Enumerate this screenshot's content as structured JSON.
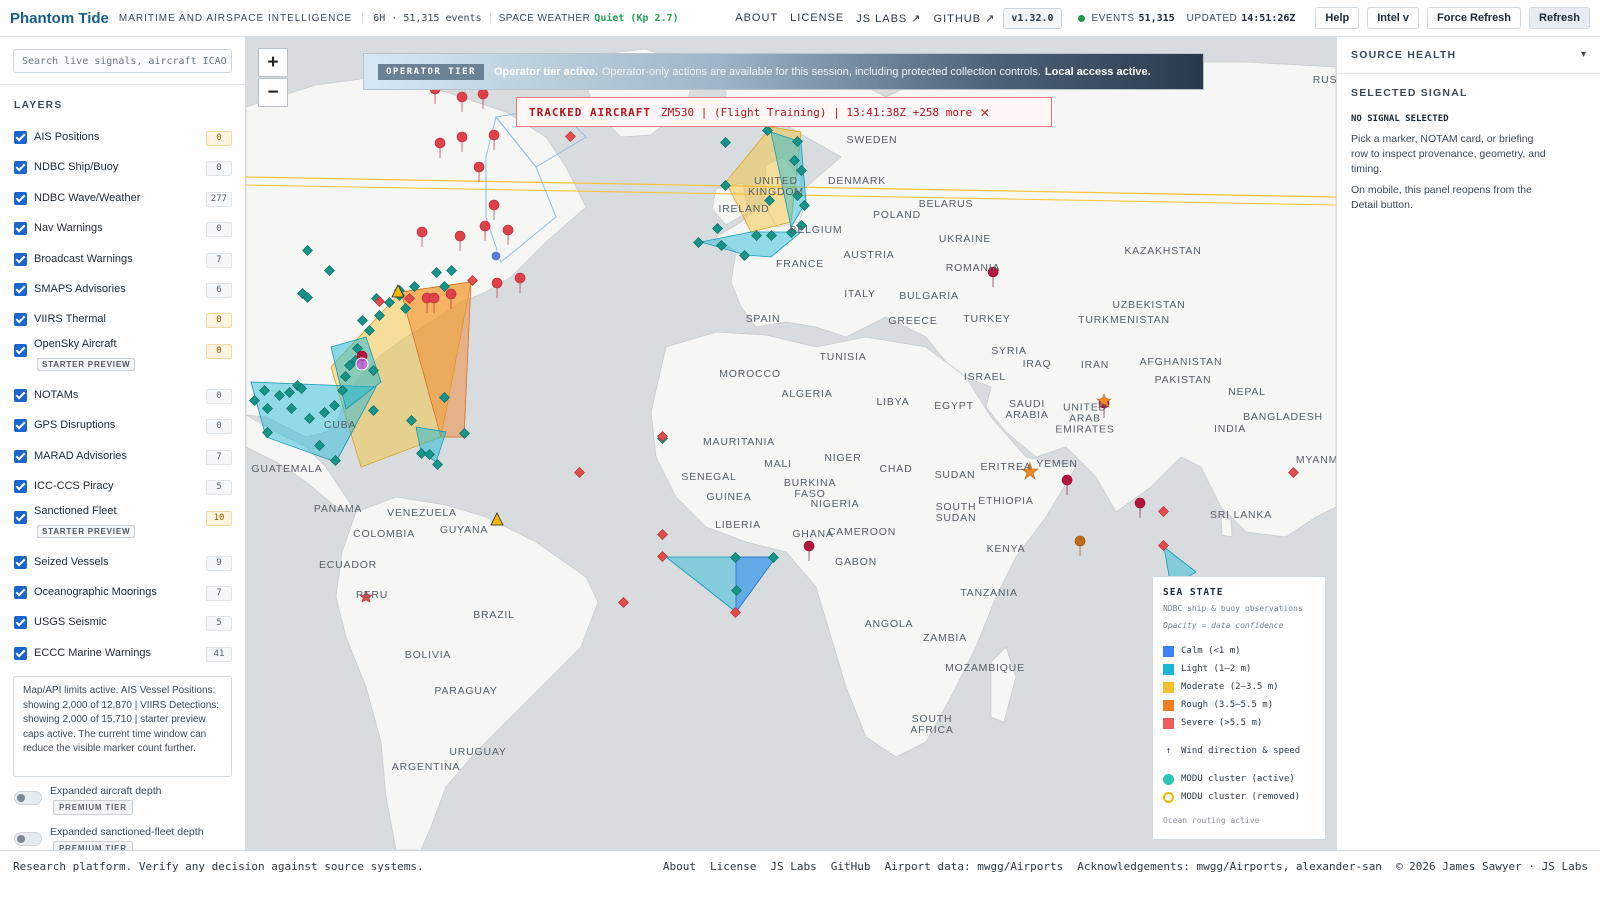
{
  "header": {
    "brand": "Phantom Tide",
    "tagline": "MARITIME AND AIRSPACE INTELLIGENCE",
    "window": "6H · 51,315 events",
    "space_weather_label": "SPACE WEATHER",
    "space_weather_value": "Quiet (Kp 2.7)",
    "nav": [
      "ABOUT",
      "LICENSE",
      "JS LABS ↗",
      "GITHUB ↗"
    ],
    "version": "v1.32.0",
    "events_label": "EVENTS",
    "events_value": "51,315",
    "updated_label": "UPDATED",
    "updated_value": "14:51:26Z",
    "buttons": {
      "help": "Help",
      "intel": "Intel v",
      "force_refresh": "Force Refresh",
      "refresh": "Refresh"
    },
    "status_color": "#1e9a50",
    "brand_color": "#155e86"
  },
  "left": {
    "search_placeholder": "Search live signals, aircraft ICAO",
    "layers_title": "LAYERS",
    "layers": [
      {
        "label": "AIS Positions",
        "count": "0",
        "warn": true
      },
      {
        "label": "NDBC Ship/Buoy",
        "count": "0"
      },
      {
        "label": "NDBC Wave/Weather",
        "count": "277"
      },
      {
        "label": "Nav Warnings",
        "count": "0"
      },
      {
        "label": "Broadcast Warnings",
        "count": "7"
      },
      {
        "label": "SMAPS Advisories",
        "count": "6"
      },
      {
        "label": "VIIRS Thermal",
        "count": "0",
        "warn": true
      },
      {
        "label": "OpenSky Aircraft",
        "count": "0",
        "warn": true,
        "tag": "STARTER PREVIEW"
      },
      {
        "label": "NOTAMs",
        "count": "0"
      },
      {
        "label": "GPS Disruptions",
        "count": "0"
      },
      {
        "label": "MARAD Advisories",
        "count": "7"
      },
      {
        "label": "ICC-CCS Piracy",
        "count": "5"
      },
      {
        "label": "Sanctioned Fleet",
        "count": "10",
        "warn": true,
        "tag": "STARTER PREVIEW"
      },
      {
        "label": "Seized Vessels",
        "count": "9"
      },
      {
        "label": "Oceanographic Moorings",
        "count": "7"
      },
      {
        "label": "USGS Seismic",
        "count": "5"
      },
      {
        "label": "ECCC Marine Warnings",
        "count": "41"
      }
    ],
    "limits_note": "Map/API limits active. AIS Vessel Positions: showing 2,000 of 12,870 | VIIRS Detections: showing 2,000 of 15,710 | starter preview caps active. The current time window can reduce the visible marker count further.",
    "premium": [
      {
        "label": "Expanded aircraft depth",
        "tag": "PREMIUM TIER"
      },
      {
        "label": "Expanded sanctioned-fleet depth",
        "tag": "PREMIUM TIER"
      }
    ]
  },
  "map": {
    "zoom_in": "+",
    "zoom_out": "−",
    "banner": {
      "tag": "OPERATOR TIER",
      "bold": "Operator tier active.",
      "text": "Operator-only actions are available for this session, including protected collection controls.",
      "bold2": "Local access active."
    },
    "tracked": {
      "label": "TRACKED AIRCRAFT",
      "text": "ZM530 | (Flight Training) | 13:41:38Z +258 more"
    },
    "place_labels": [
      "SWEDEN",
      "DENMARK",
      "BELARUS",
      "UNITED KINGDOM",
      "IRELAND",
      "POLAND",
      "BELGIUM",
      "UKRAINE",
      "KAZAKHSTAN",
      "FRANCE",
      "AUSTRIA",
      "ROMANIA",
      "ITALY",
      "BULGARIA",
      "UZBEKISTAN",
      "TURKMENISTAN",
      "SPAIN",
      "GREECE",
      "TURKEY",
      "TUNISIA",
      "SYRIA",
      "IRAQ",
      "IRAN",
      "AFGHANISTAN",
      "MOROCCO",
      "ISRAEL",
      "PAKISTAN",
      "ALGERIA",
      "LIBYA",
      "EGYPT",
      "NEPAL",
      "SAUDI ARABIA",
      "UNITED ARAB EMIRATES",
      "BANGLADESH",
      "INDIA",
      "MAURITANIA",
      "MALI",
      "NIGER",
      "CHAD",
      "SUDAN",
      "ERITREA",
      "YEMEN",
      "MYANM",
      "SENEGAL",
      "GUINEA",
      "BURKINA FASO",
      "NIGERIA",
      "ETHIOPIA",
      "SOUTH SUDAN",
      "SRI LANKA",
      "LIBERIA",
      "GHANA",
      "CAMEROON",
      "KENYA",
      "GABON",
      "TANZANIA",
      "ANGOLA",
      "ZAMBIA",
      "MOZAMBIQUE",
      "SOUTH AFRICA",
      "CUBA",
      "GUATEMALA",
      "PANAMA",
      "VENEZUELA",
      "GUYANA",
      "COLOMBIA",
      "ECUADOR",
      "PERU",
      "BRAZIL",
      "BOLIVIA",
      "PARAGUAY",
      "URUGUAY",
      "ARGENTINA",
      "RUS"
    ],
    "legend": {
      "title": "SEA STATE",
      "subtitle": "NDBC ship & buoy observations",
      "opacity_note": "Opacity = data confidence",
      "items": [
        {
          "label": "Calm (<1 m)",
          "color": "#3b82f6"
        },
        {
          "label": "Light (1–2 m)",
          "color": "#19b7d6"
        },
        {
          "label": "Moderate (2–3.5 m)",
          "color": "#f6c02c"
        },
        {
          "label": "Rough (3.5–5.5 m)",
          "color": "#f47c20"
        },
        {
          "label": "Severe (>5.5 m)",
          "color": "#ef5a5a"
        }
      ],
      "wind": "Wind direction & speed",
      "modu_active": "MODU cluster (active)",
      "modu_removed": "MODU cluster (removed)",
      "modu_active_color": "#2ec4b6",
      "modu_removed_color": "#f2b705",
      "footer": "Ocean routing active"
    }
  },
  "right": {
    "source_health": "SOURCE HEALTH",
    "chevron": "▾",
    "selected_signal": "SELECTED SIGNAL",
    "no_signal": "NO SIGNAL SELECTED",
    "p1": "Pick a marker, NOTAM card, or briefing row to inspect provenance, geometry, and timing.",
    "p2": "On mobile, this panel reopens from the Detail button."
  },
  "footer": {
    "disclaimer": "Research platform. Verify any decision against source systems.",
    "links": [
      "About",
      "License",
      "JS Labs",
      "GitHub",
      "Airport data: mwgg/Airports",
      "Acknowledgements: mwgg/Airports, alexander-san",
      "© 2026 James Sawyer · JS Labs"
    ]
  }
}
